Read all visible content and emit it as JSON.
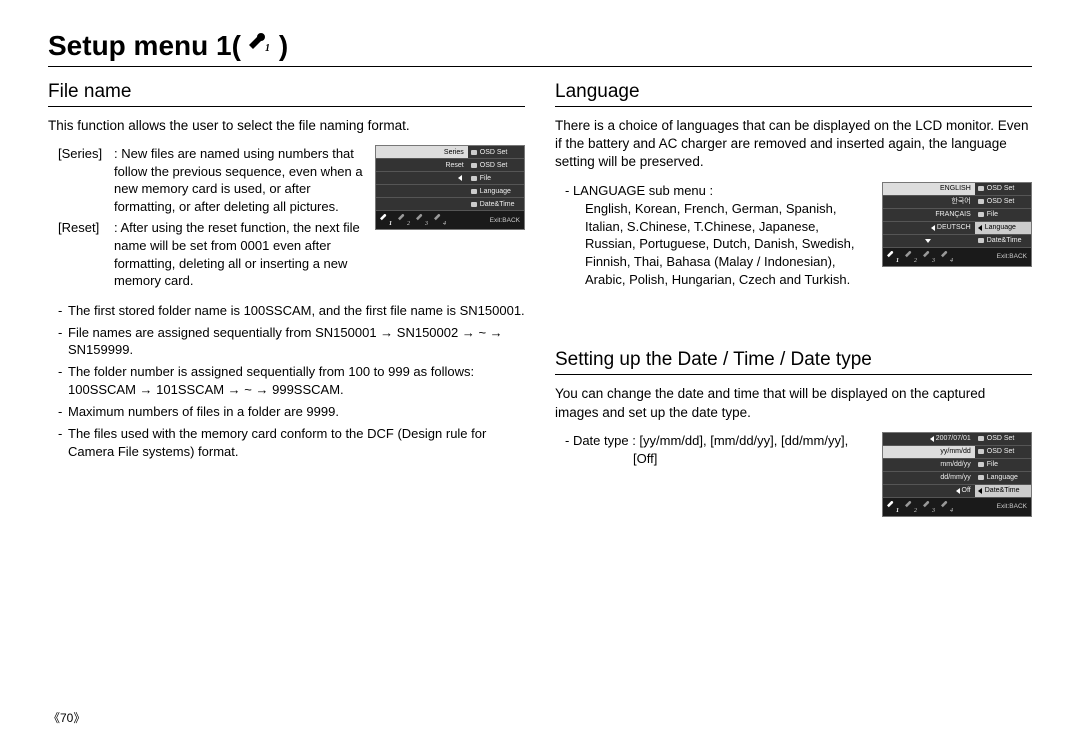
{
  "page_title": "Setup menu 1(",
  "page_title_suffix": ")",
  "page_number": "《70》",
  "left": {
    "title": "File name",
    "intro": "This function allows the user to select the file naming format.",
    "defs": [
      {
        "label": "[Series]",
        "body": ": New files are named using numbers that follow the previous sequence, even when a new memory card is used, or after formatting, or after deleting all pictures."
      },
      {
        "label": "[Reset]",
        "body": ": After using the reset function, the next file name will be set from 0001 even after formatting, deleting all or inserting a new memory card."
      }
    ],
    "bullets": [
      "The first stored folder name is 100SSCAM, and the first file name is SN150001.",
      "File names are assigned sequentially from SN150001 → SN150002 → ~ → SN159999.",
      "The folder number is assigned sequentially from 100 to 999 as follows: 100SSCAM → 101SSCAM → ~ → 999SSCAM.",
      "Maximum numbers of files in a folder are 9999.",
      "The files used with the memory card conform to the DCF (Design rule for Camera File systems) format."
    ],
    "ss": {
      "left_items": [
        {
          "label": "Series",
          "sel": true
        },
        {
          "label": "Reset",
          "sel": false
        },
        {
          "label": "",
          "sel": false,
          "tri": true
        },
        {
          "label": "",
          "sel": false
        },
        {
          "label": "",
          "sel": false
        }
      ],
      "right_items": [
        "OSD Set",
        "OSD Set",
        "File",
        "Language",
        "Date&Time"
      ],
      "exit": "Exit:BACK"
    }
  },
  "right_lang": {
    "title": "Language",
    "intro": "There is a choice of languages that can be displayed on the LCD monitor. Even if the battery and AC charger are removed and inserted again, the language setting will be preserved.",
    "sub_label": "- LANGUAGE sub menu :",
    "sub_body": "English, Korean, French, German, Spanish, Italian, S.Chinese, T.Chinese, Japanese, Russian, Portuguese, Dutch, Danish, Swedish, Finnish, Thai, Bahasa (Malay / Indonesian), Arabic, Polish, Hungarian, Czech and Turkish.",
    "ss": {
      "left_items": [
        {
          "label": "ENGLISH",
          "sel": true
        },
        {
          "label": "한국어",
          "sel": false
        },
        {
          "label": "FRANÇAIS",
          "sel": false
        },
        {
          "label": "DEUTSCH",
          "sel": false,
          "tri": true
        },
        {
          "label": "",
          "sel": false,
          "arrow": true
        }
      ],
      "right_items": [
        "OSD Set",
        "OSD Set",
        "File",
        "Language",
        "Date&Time"
      ],
      "right_sel_index": 3,
      "exit": "Exit:BACK"
    }
  },
  "right_date": {
    "title": "Setting up the Date / Time / Date type",
    "intro": "You can change the date and time that will be displayed on the captured images and set up the date type.",
    "bullet": "- Date type : [yy/mm/dd], [mm/dd/yy], [dd/mm/yy], [Off]",
    "ss": {
      "left_items": [
        {
          "label": "2007/07/01",
          "sel": false,
          "tri": true
        },
        {
          "label": "yy/mm/dd",
          "sel": true
        },
        {
          "label": "mm/dd/yy",
          "sel": false
        },
        {
          "label": "dd/mm/yy",
          "sel": false
        },
        {
          "label": "Off",
          "sel": false,
          "tri": true
        }
      ],
      "right_items": [
        "OSD Set",
        "OSD Set",
        "File",
        "Language",
        "Date&Time"
      ],
      "right_sel_index": 4,
      "exit": "Exit:BACK"
    }
  }
}
